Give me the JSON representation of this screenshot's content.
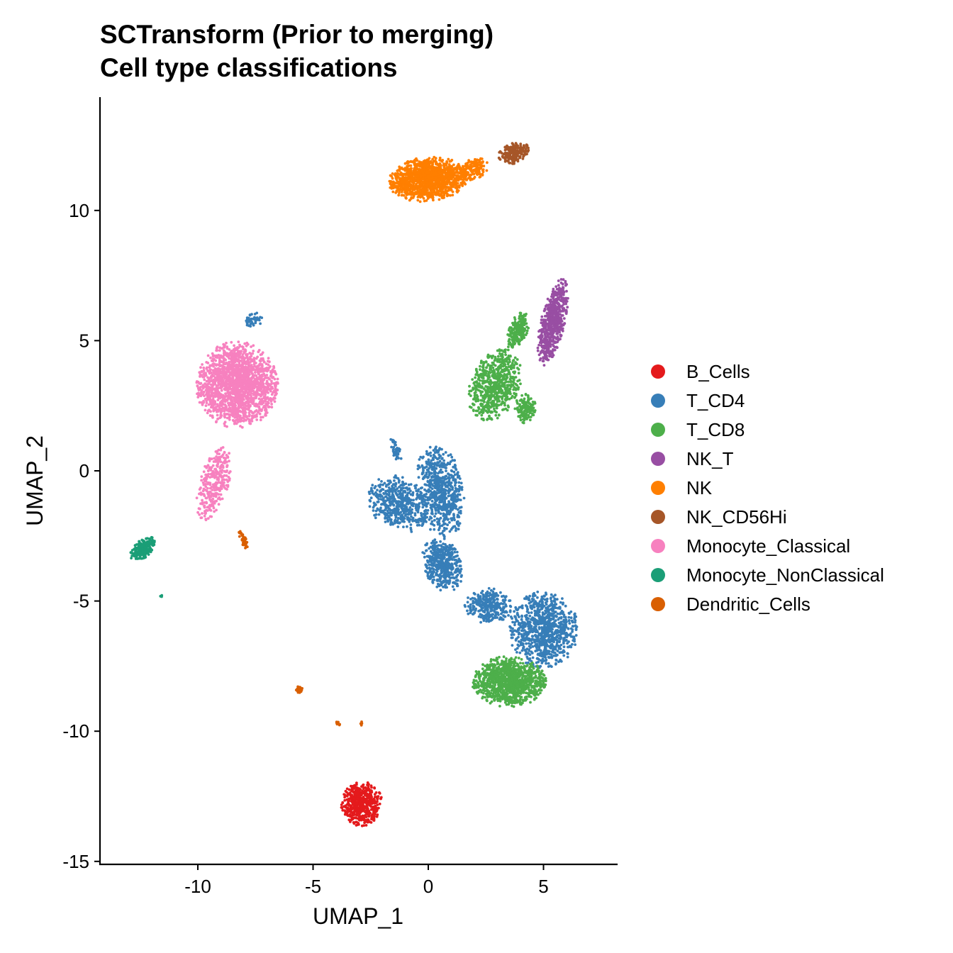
{
  "chart_data": {
    "type": "scatter",
    "title": "SCTransform (Prior to merging)",
    "subtitle": "Cell type classifications",
    "xlabel": "UMAP_1",
    "ylabel": "UMAP_2",
    "xlim": [
      -14.3,
      8.2
    ],
    "ylim": [
      -15.1,
      14.2
    ],
    "x_ticks": [
      -10,
      -5,
      0,
      5
    ],
    "x_tick_labels": [
      "-10",
      "-5",
      "0",
      "5"
    ],
    "y_ticks": [
      -15,
      -10,
      -5,
      0,
      5,
      10
    ],
    "y_tick_labels": [
      "-15",
      "-10",
      "-5",
      "0",
      "5",
      "10"
    ],
    "grid": false,
    "legend_position": "right",
    "series": [
      {
        "name": "B_Cells",
        "color": "#E41A1C",
        "regions": [
          {
            "cx": -2.9,
            "cy": -12.8,
            "sx": 0.8,
            "sy": 0.75,
            "rot": 20,
            "n": 500
          }
        ]
      },
      {
        "name": "T_CD4",
        "color": "#377EB8",
        "regions": [
          {
            "cx": 0.5,
            "cy": -0.8,
            "sx": 0.9,
            "sy": 1.6,
            "rot": 10,
            "n": 700
          },
          {
            "cx": -1.3,
            "cy": -1.3,
            "sx": 1.2,
            "sy": 0.9,
            "rot": -30,
            "n": 500
          },
          {
            "cx": 0.6,
            "cy": -3.6,
            "sx": 0.7,
            "sy": 1.0,
            "rot": 25,
            "n": 450
          },
          {
            "cx": 5.0,
            "cy": -6.1,
            "sx": 1.3,
            "sy": 1.3,
            "rot": 0,
            "n": 900
          },
          {
            "cx": 2.6,
            "cy": -5.2,
            "sx": 0.9,
            "sy": 0.6,
            "rot": 0,
            "n": 300
          },
          {
            "cx": -1.4,
            "cy": 0.8,
            "sx": 0.15,
            "sy": 0.5,
            "rot": 20,
            "n": 40
          },
          {
            "cx": -7.6,
            "cy": 5.8,
            "sx": 0.35,
            "sy": 0.25,
            "rot": 0,
            "n": 40
          }
        ]
      },
      {
        "name": "T_CD8",
        "color": "#4DAF4A",
        "regions": [
          {
            "cx": 3.5,
            "cy": -8.1,
            "sx": 1.4,
            "sy": 0.85,
            "rot": 0,
            "n": 1100
          },
          {
            "cx": 2.9,
            "cy": 3.3,
            "sx": 0.9,
            "sy": 1.3,
            "rot": -30,
            "n": 650
          },
          {
            "cx": 4.2,
            "cy": 2.4,
            "sx": 0.4,
            "sy": 0.5,
            "rot": 0,
            "n": 150
          },
          {
            "cx": 3.9,
            "cy": 5.4,
            "sx": 0.35,
            "sy": 0.7,
            "rot": -25,
            "n": 200
          }
        ]
      },
      {
        "name": "NK_T",
        "color": "#984EA3",
        "regions": [
          {
            "cx": 5.4,
            "cy": 5.7,
            "sx": 0.45,
            "sy": 1.5,
            "rot": -15,
            "n": 600
          }
        ]
      },
      {
        "name": "NK",
        "color": "#FF7F00",
        "regions": [
          {
            "cx": 0.0,
            "cy": 11.2,
            "sx": 1.5,
            "sy": 0.75,
            "rot": 5,
            "n": 1300
          },
          {
            "cx": 2.0,
            "cy": 11.6,
            "sx": 0.6,
            "sy": 0.35,
            "rot": 20,
            "n": 150
          }
        ]
      },
      {
        "name": "NK_CD56Hi",
        "color": "#A65628",
        "regions": [
          {
            "cx": 3.7,
            "cy": 12.2,
            "sx": 0.6,
            "sy": 0.35,
            "rot": 15,
            "n": 220
          }
        ]
      },
      {
        "name": "Monocyte_Classical",
        "color": "#F781BF",
        "regions": [
          {
            "cx": -8.3,
            "cy": 3.3,
            "sx": 1.55,
            "sy": 1.45,
            "rot": 0,
            "n": 1800
          },
          {
            "cx": -9.3,
            "cy": -0.5,
            "sx": 0.55,
            "sy": 1.3,
            "rot": -20,
            "n": 300
          }
        ]
      },
      {
        "name": "Monocyte_NonClassical",
        "color": "#1B9E77",
        "regions": [
          {
            "cx": -12.4,
            "cy": -3.0,
            "sx": 0.55,
            "sy": 0.3,
            "rot": 35,
            "n": 220
          },
          {
            "cx": -11.6,
            "cy": -4.8,
            "sx": 0.05,
            "sy": 0.05,
            "rot": 0,
            "n": 4
          }
        ]
      },
      {
        "name": "Dendritic_Cells",
        "color": "#D95F02",
        "regions": [
          {
            "cx": -8.0,
            "cy": -2.7,
            "sx": 0.1,
            "sy": 0.45,
            "rot": 25,
            "n": 40
          },
          {
            "cx": -5.6,
            "cy": -8.4,
            "sx": 0.12,
            "sy": 0.12,
            "rot": 0,
            "n": 40
          },
          {
            "cx": -3.9,
            "cy": -9.7,
            "sx": 0.1,
            "sy": 0.05,
            "rot": -30,
            "n": 8
          },
          {
            "cx": -2.9,
            "cy": -9.7,
            "sx": 0.03,
            "sy": 0.1,
            "rot": 0,
            "n": 6
          }
        ]
      }
    ]
  }
}
